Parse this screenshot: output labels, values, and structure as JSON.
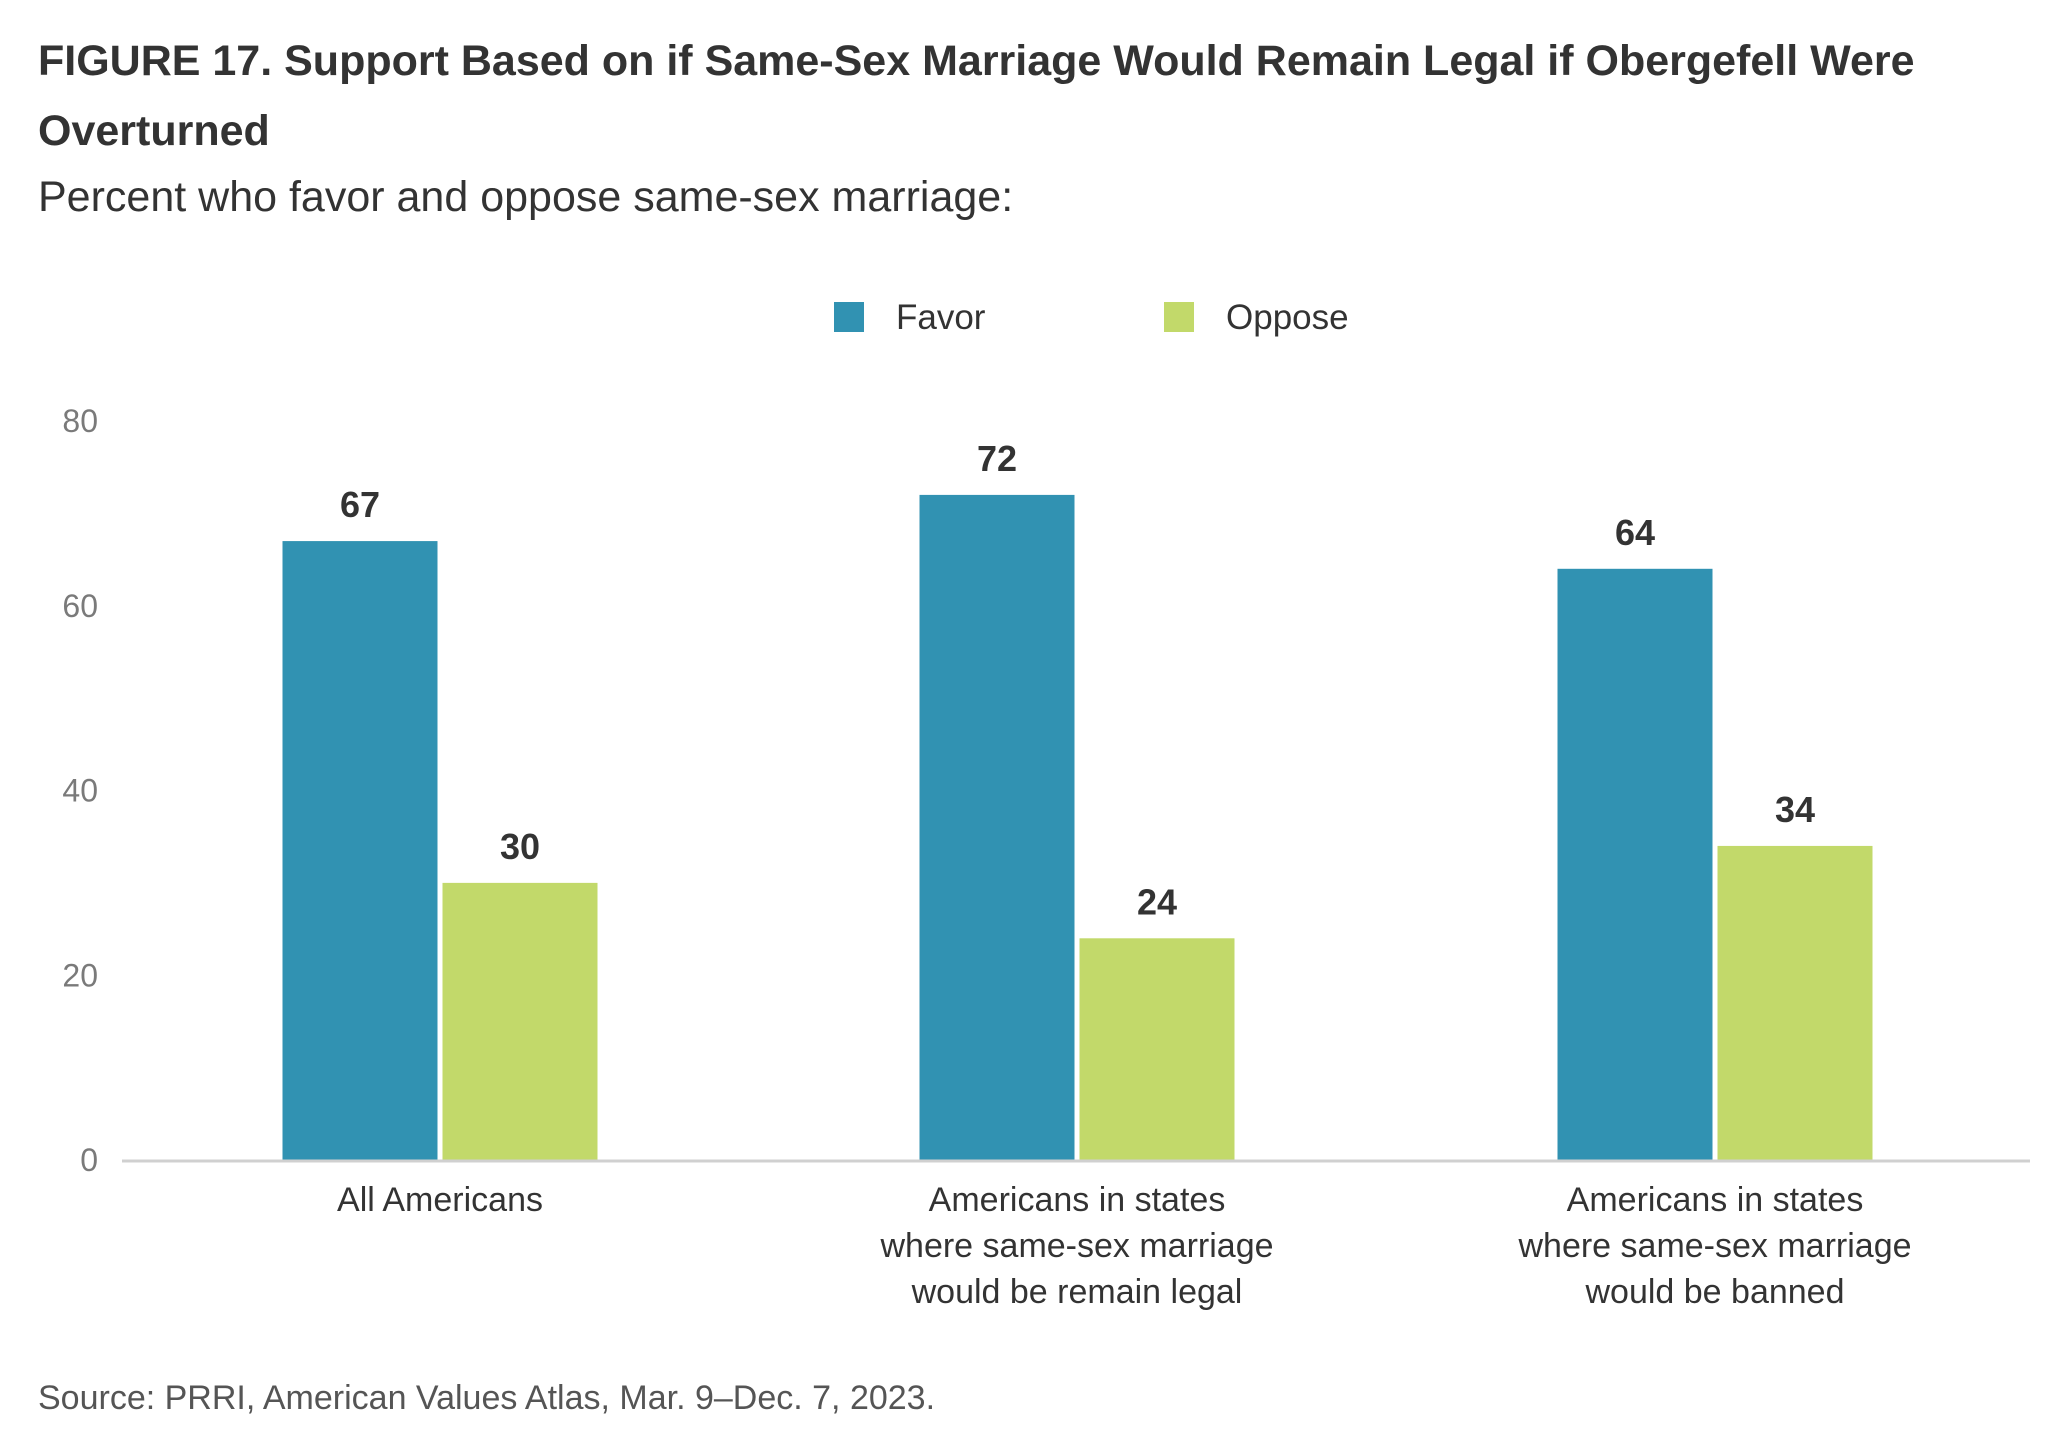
{
  "header": {
    "title": "FIGURE 17. Support Based on if Same-Sex Marriage Would Remain Legal if Obergefell Were Overturned",
    "subtitle": "Percent who favor and oppose same-sex marriage:"
  },
  "footer": {
    "source": "Source: PRRI, American Values Atlas, Mar. 9–Dec. 7, 2023."
  },
  "chart_data": {
    "type": "bar",
    "title": "FIGURE 17. Support Based on if Same-Sex Marriage Would Remain Legal if Obergefell Were Overturned",
    "subtitle": "Percent who favor and oppose same-sex marriage:",
    "categories": [
      [
        "All Americans"
      ],
      [
        "Americans in states",
        "where same-sex marriage",
        "would be remain legal"
      ],
      [
        "Americans in states",
        "where same-sex marriage",
        "would be banned"
      ]
    ],
    "series": [
      {
        "name": "Favor",
        "color": "#3192b2",
        "values": [
          67,
          72,
          64
        ]
      },
      {
        "name": "Oppose",
        "color": "#c2d96a",
        "values": [
          30,
          24,
          34
        ]
      }
    ],
    "ylim": [
      0,
      80
    ],
    "yticks": [
      0,
      20,
      40,
      60,
      80
    ],
    "grid": false,
    "legend": "top-center",
    "data_labels": true
  }
}
